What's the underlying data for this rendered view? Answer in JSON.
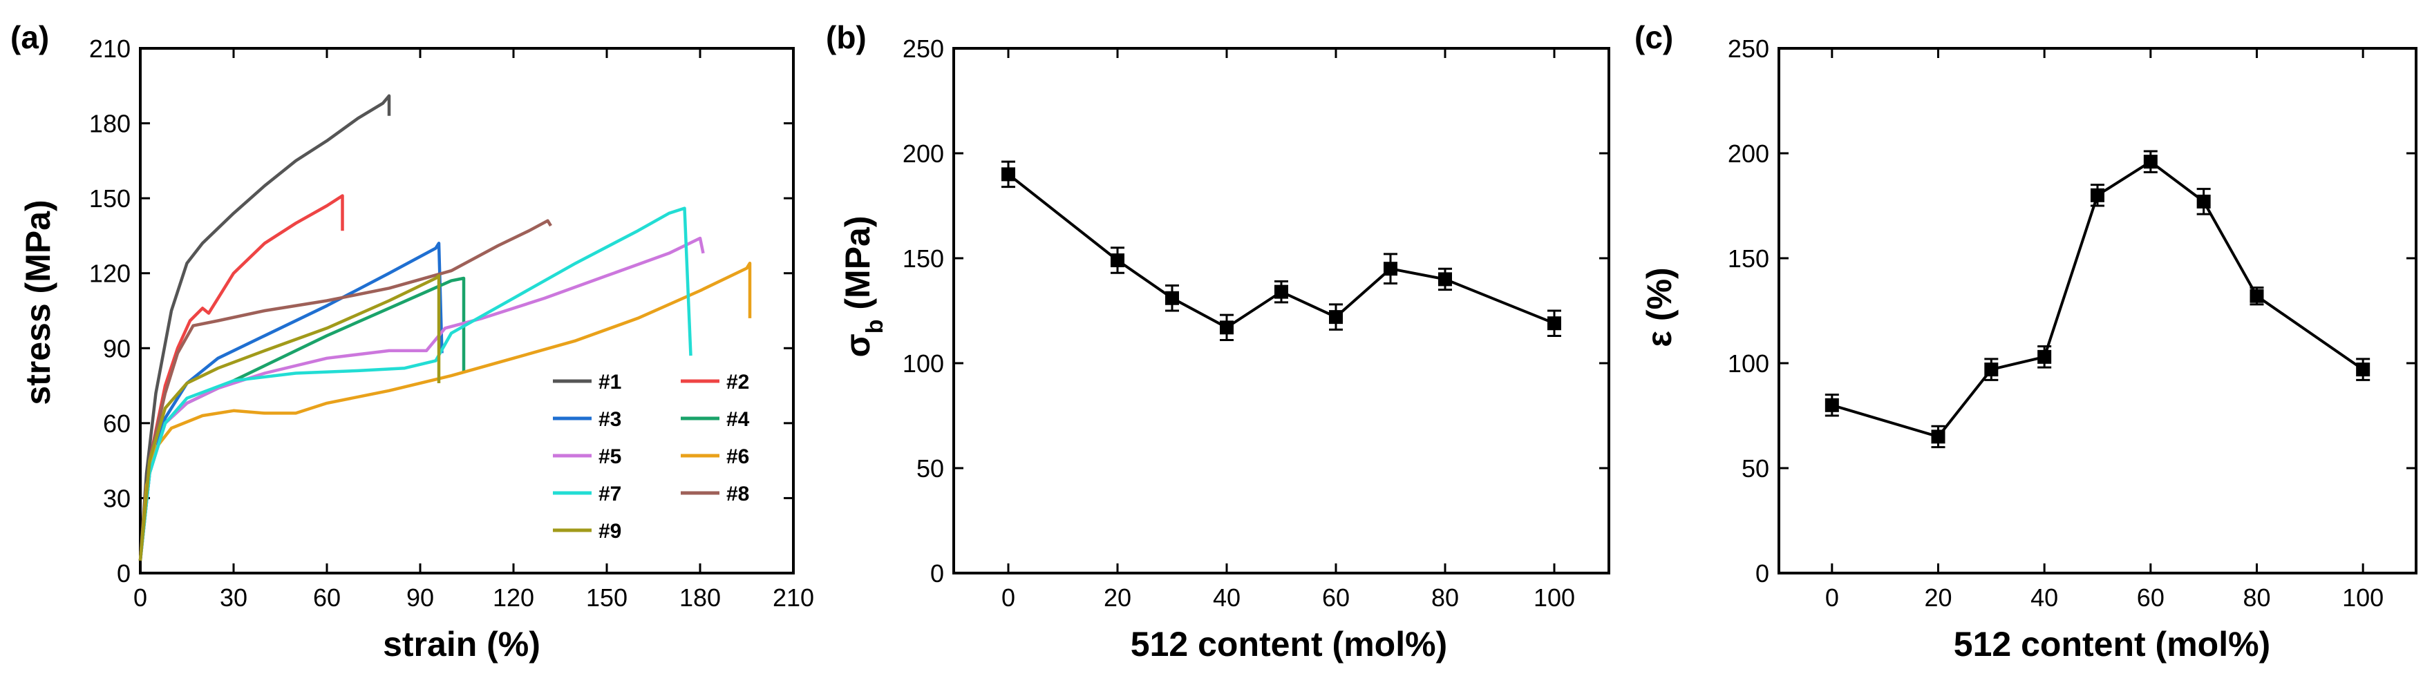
{
  "chart_data": [
    {
      "panel_label": "(a)",
      "type": "line",
      "xlabel": "strain (%)",
      "ylabel": "stress (MPa)",
      "xlim": [
        0,
        210
      ],
      "ylim": [
        0,
        210
      ],
      "xticks": [
        0,
        30,
        60,
        90,
        120,
        150,
        180,
        210
      ],
      "yticks": [
        0,
        30,
        60,
        90,
        120,
        150,
        180,
        210
      ],
      "legend_placement": "bottom-right",
      "series": [
        {
          "name": "#1",
          "color": "#555555",
          "points": [
            [
              0,
              5
            ],
            [
              2,
              40
            ],
            [
              5,
              72
            ],
            [
              10,
              105
            ],
            [
              15,
              124
            ],
            [
              20,
              132
            ],
            [
              30,
              144
            ],
            [
              40,
              155
            ],
            [
              50,
              165
            ],
            [
              60,
              173
            ],
            [
              70,
              182
            ],
            [
              78,
              188
            ],
            [
              80,
              191
            ],
            [
              80,
              183
            ]
          ]
        },
        {
          "name": "#2",
          "color": "#ee4444",
          "points": [
            [
              0,
              5
            ],
            [
              3,
              45
            ],
            [
              8,
              75
            ],
            [
              12,
              90
            ],
            [
              16,
              101
            ],
            [
              20,
              106
            ],
            [
              22,
              104
            ],
            [
              25,
              110
            ],
            [
              30,
              120
            ],
            [
              40,
              132
            ],
            [
              50,
              140
            ],
            [
              60,
              147
            ],
            [
              65,
              151
            ],
            [
              65,
              137
            ]
          ]
        },
        {
          "name": "#3",
          "color": "#1f6fd1",
          "points": [
            [
              0,
              5
            ],
            [
              3,
              40
            ],
            [
              8,
              62
            ],
            [
              15,
              76
            ],
            [
              25,
              86
            ],
            [
              40,
              95
            ],
            [
              60,
              107
            ],
            [
              80,
              120
            ],
            [
              95,
              130
            ],
            [
              96,
              132
            ],
            [
              97,
              88
            ]
          ]
        },
        {
          "name": "#4",
          "color": "#1aa36a",
          "points": [
            [
              0,
              5
            ],
            [
              3,
              40
            ],
            [
              8,
              60
            ],
            [
              15,
              68
            ],
            [
              25,
              74
            ],
            [
              40,
              83
            ],
            [
              60,
              95
            ],
            [
              80,
              106
            ],
            [
              100,
              117
            ],
            [
              104,
              118
            ],
            [
              104,
              80
            ]
          ]
        },
        {
          "name": "#5",
          "color": "#cc77dd",
          "points": [
            [
              0,
              5
            ],
            [
              3,
              40
            ],
            [
              8,
              60
            ],
            [
              15,
              68
            ],
            [
              25,
              74
            ],
            [
              40,
              80
            ],
            [
              60,
              86
            ],
            [
              80,
              89
            ],
            [
              92,
              89
            ],
            [
              98,
              98
            ],
            [
              110,
              102
            ],
            [
              130,
              110
            ],
            [
              150,
              119
            ],
            [
              170,
              128
            ],
            [
              180,
              134
            ],
            [
              181,
              128
            ]
          ]
        },
        {
          "name": "#6",
          "color": "#e9a11a",
          "points": [
            [
              0,
              5
            ],
            [
              2,
              35
            ],
            [
              5,
              50
            ],
            [
              10,
              58
            ],
            [
              20,
              63
            ],
            [
              30,
              65
            ],
            [
              40,
              64
            ],
            [
              50,
              64
            ],
            [
              60,
              68
            ],
            [
              80,
              73
            ],
            [
              100,
              79
            ],
            [
              120,
              86
            ],
            [
              140,
              93
            ],
            [
              160,
              102
            ],
            [
              180,
              113
            ],
            [
              195,
              122
            ],
            [
              196,
              124
            ],
            [
              196,
              102
            ]
          ]
        },
        {
          "name": "#7",
          "color": "#22ddd4",
          "points": [
            [
              0,
              5
            ],
            [
              3,
              40
            ],
            [
              8,
              60
            ],
            [
              15,
              70
            ],
            [
              30,
              77
            ],
            [
              50,
              80
            ],
            [
              70,
              81
            ],
            [
              85,
              82
            ],
            [
              95,
              85
            ],
            [
              100,
              96
            ],
            [
              120,
              110
            ],
            [
              140,
              124
            ],
            [
              160,
              137
            ],
            [
              170,
              144
            ],
            [
              175,
              146
            ],
            [
              177,
              87
            ]
          ]
        },
        {
          "name": "#8",
          "color": "#9e6058",
          "points": [
            [
              0,
              5
            ],
            [
              3,
              45
            ],
            [
              8,
              72
            ],
            [
              12,
              88
            ],
            [
              17,
              99
            ],
            [
              25,
              101
            ],
            [
              40,
              105
            ],
            [
              60,
              109
            ],
            [
              80,
              114
            ],
            [
              100,
              121
            ],
            [
              115,
              131
            ],
            [
              125,
              137
            ],
            [
              131,
              141
            ],
            [
              132,
              139
            ]
          ]
        },
        {
          "name": "#9",
          "color": "#a19a1a",
          "points": [
            [
              0,
              5
            ],
            [
              3,
              45
            ],
            [
              8,
              66
            ],
            [
              15,
              76
            ],
            [
              25,
              82
            ],
            [
              40,
              89
            ],
            [
              60,
              98
            ],
            [
              80,
              109
            ],
            [
              95,
              118
            ],
            [
              96,
              119
            ],
            [
              96,
              76
            ]
          ]
        }
      ]
    },
    {
      "panel_label": "(b)",
      "type": "line",
      "xlabel": "512 content (mol%)",
      "ylabel_main": "σ",
      "ylabel_sub": "b",
      "ylabel_rest": " (MPa)",
      "xlim": [
        -10,
        110
      ],
      "ylim": [
        0,
        250
      ],
      "xticks": [
        0,
        20,
        40,
        60,
        80,
        100
      ],
      "yticks": [
        0,
        50,
        100,
        150,
        200,
        250
      ],
      "x": [
        0,
        20,
        30,
        40,
        50,
        60,
        70,
        80,
        100
      ],
      "y": [
        190,
        149,
        131,
        117,
        134,
        122,
        145,
        140,
        119
      ],
      "err": [
        6,
        6,
        6,
        6,
        5,
        6,
        7,
        5,
        6
      ],
      "color": "#000000"
    },
    {
      "panel_label": "(c)",
      "type": "line",
      "xlabel": "512 content (mol%)",
      "ylabel": "ε (%)",
      "xlim": [
        -10,
        110
      ],
      "ylim": [
        0,
        250
      ],
      "xticks": [
        0,
        20,
        40,
        60,
        80,
        100
      ],
      "yticks": [
        0,
        50,
        100,
        150,
        200,
        250
      ],
      "x": [
        0,
        20,
        30,
        40,
        50,
        60,
        70,
        80,
        100
      ],
      "y": [
        80,
        65,
        97,
        103,
        180,
        196,
        177,
        132,
        97
      ],
      "err": [
        5,
        5,
        5,
        5,
        5,
        5,
        6,
        4,
        5
      ],
      "color": "#000000"
    }
  ]
}
